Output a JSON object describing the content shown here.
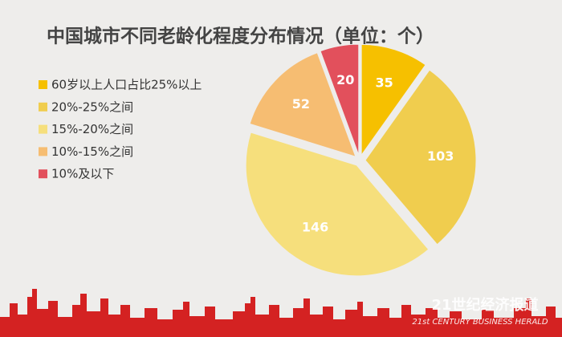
{
  "chart_data": {
    "type": "pie",
    "title": "中国城市不同老龄化程度分布情况（单位：个）",
    "categories": [
      "60岁以上人口占比25%以上",
      "20%-25%之间",
      "15%-20%之间",
      "10%-15%之间",
      "10%及以下"
    ],
    "values": [
      35,
      103,
      146,
      52,
      20
    ],
    "colors": [
      "#F6C000",
      "#F0CD4E",
      "#F6DF7C",
      "#F6BD72",
      "#E2505C"
    ],
    "legend": "left"
  },
  "watermark": {
    "title": "21世纪经济报道",
    "subtitle": "21st CENTURY BUSINESS HERALD"
  }
}
